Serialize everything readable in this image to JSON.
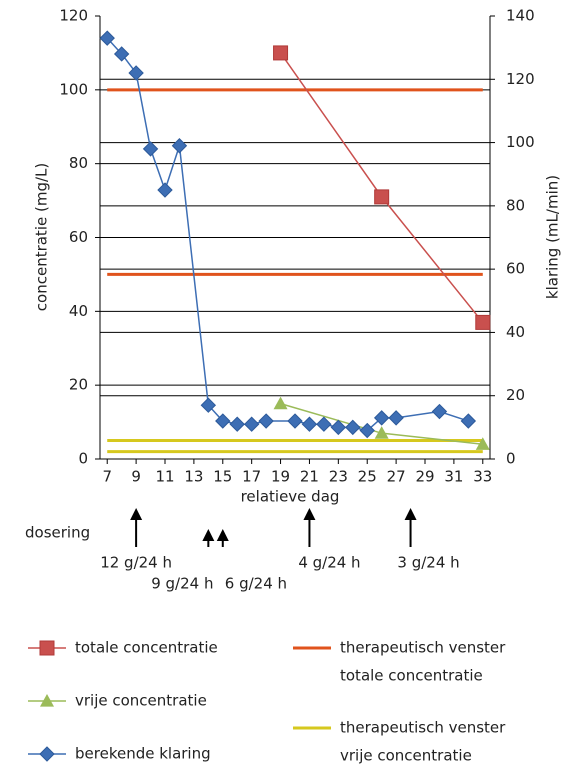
{
  "chart_data": {
    "type": "line",
    "xlabel": "relatieve dag",
    "ylabel": "concentratie (mg/L)",
    "y2label": "klaring (mL/min)",
    "xlim": [
      6.5,
      33.5
    ],
    "xticks": [
      7,
      9,
      11,
      13,
      15,
      17,
      19,
      21,
      23,
      25,
      27,
      29,
      31,
      33
    ],
    "ylim": [
      0,
      120
    ],
    "yticks": [
      0,
      20,
      40,
      60,
      80,
      100,
      120
    ],
    "y2lim": [
      0,
      140
    ],
    "y2ticks": [
      0,
      20,
      40,
      60,
      80,
      100,
      120,
      140
    ],
    "grid": true,
    "series": [
      {
        "name": "totale concentratie",
        "color": "#c9504e",
        "marker": "square",
        "x": [
          19,
          26,
          33
        ],
        "values": [
          110,
          71,
          37
        ]
      },
      {
        "name": "vrije concentratie",
        "color": "#9bbb59",
        "marker": "triangle",
        "x": [
          19,
          26,
          33
        ],
        "values": [
          15,
          7,
          4
        ]
      },
      {
        "name": "berekende klaring",
        "color": "#3d6eb4",
        "marker": "diamond",
        "axis": "y2",
        "x": [
          7,
          8,
          9,
          10,
          11,
          12,
          14,
          15,
          16,
          17,
          18,
          20,
          21,
          22,
          23,
          24,
          25,
          26,
          27,
          30,
          32
        ],
        "values": [
          133,
          128,
          122,
          98,
          85,
          99,
          17,
          12,
          11,
          11,
          12,
          12,
          11,
          11,
          10,
          10,
          9,
          13,
          13,
          15,
          12
        ]
      }
    ],
    "windows": [
      {
        "name": [
          "therapeutisch venster",
          "totale concentratie"
        ],
        "color": "#e0531c",
        "values": [
          50,
          100
        ]
      },
      {
        "name": [
          "therapeutisch venster",
          "vrije concentratie"
        ],
        "color": "#d6c81e",
        "values": [
          2,
          5
        ]
      }
    ],
    "dosing": {
      "label": "dosering",
      "items": [
        {
          "day": 9,
          "text": "12 g/24 h"
        },
        {
          "day": 14,
          "text": "9 g/24 h"
        },
        {
          "day": 15,
          "text": "6 g/24 h"
        },
        {
          "day": 21,
          "text": "4 g/24 h"
        },
        {
          "day": 28,
          "text": "3 g/24 h"
        }
      ]
    }
  }
}
